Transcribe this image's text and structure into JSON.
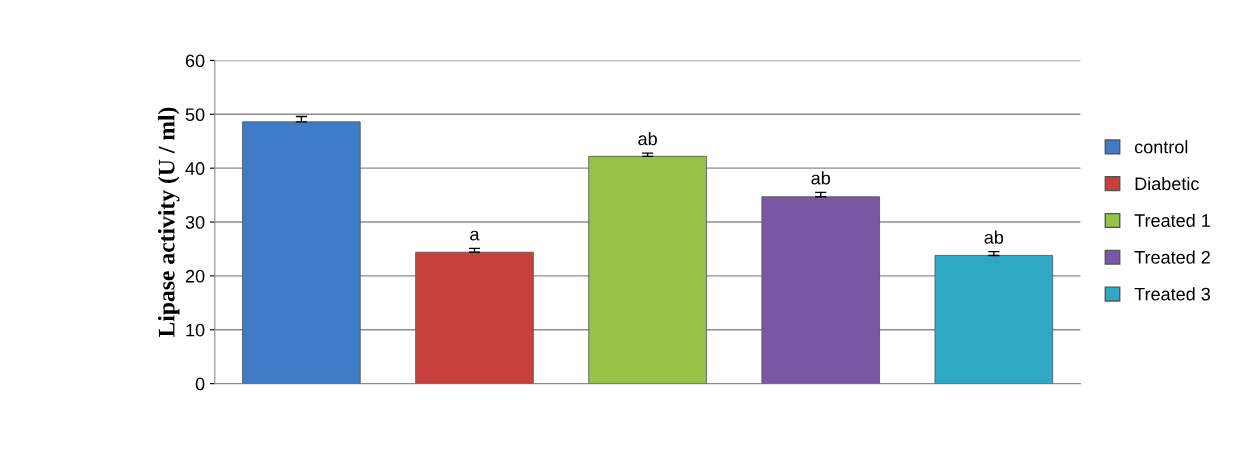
{
  "chart_data": {
    "type": "bar",
    "ylabel": "Lipase activity (U / ml)",
    "categories": [
      null,
      null,
      null,
      null,
      null
    ],
    "series": [
      {
        "name": "control",
        "color": "#3f7cc8",
        "values": [
          48.6,
          null,
          null,
          null,
          null
        ],
        "errors": [
          1.0,
          null,
          null,
          null,
          null
        ],
        "value_labels": [
          null,
          null,
          null,
          null,
          null
        ]
      },
      {
        "name": "Diabetic",
        "color": "#c8403c",
        "values": [
          null,
          24.4,
          null,
          null,
          null
        ],
        "errors": [
          null,
          0.7,
          null,
          null,
          null
        ],
        "value_labels": [
          null,
          "a",
          null,
          null,
          null
        ]
      },
      {
        "name": "Treated 1",
        "color": "#98c24a",
        "values": [
          null,
          null,
          42.2,
          null,
          null
        ],
        "errors": [
          null,
          null,
          0.6,
          null,
          null
        ],
        "value_labels": [
          null,
          null,
          "ab",
          null,
          null
        ]
      },
      {
        "name": "Treated 2",
        "color": "#7a57a4",
        "values": [
          null,
          null,
          null,
          34.7,
          null
        ],
        "errors": [
          null,
          null,
          null,
          0.8,
          null
        ],
        "value_labels": [
          null,
          null,
          null,
          "ab",
          null
        ]
      },
      {
        "name": "Treated 3",
        "color": "#2fa8c4",
        "values": [
          null,
          null,
          null,
          null,
          23.8
        ],
        "errors": [
          null,
          null,
          null,
          null,
          0.7
        ],
        "value_labels": [
          null,
          null,
          null,
          null,
          "ab"
        ]
      }
    ],
    "ylim": [
      0,
      60
    ],
    "yticks": [
      0,
      10,
      20,
      30,
      40,
      50,
      60
    ],
    "grid": "y",
    "legend": "right"
  }
}
